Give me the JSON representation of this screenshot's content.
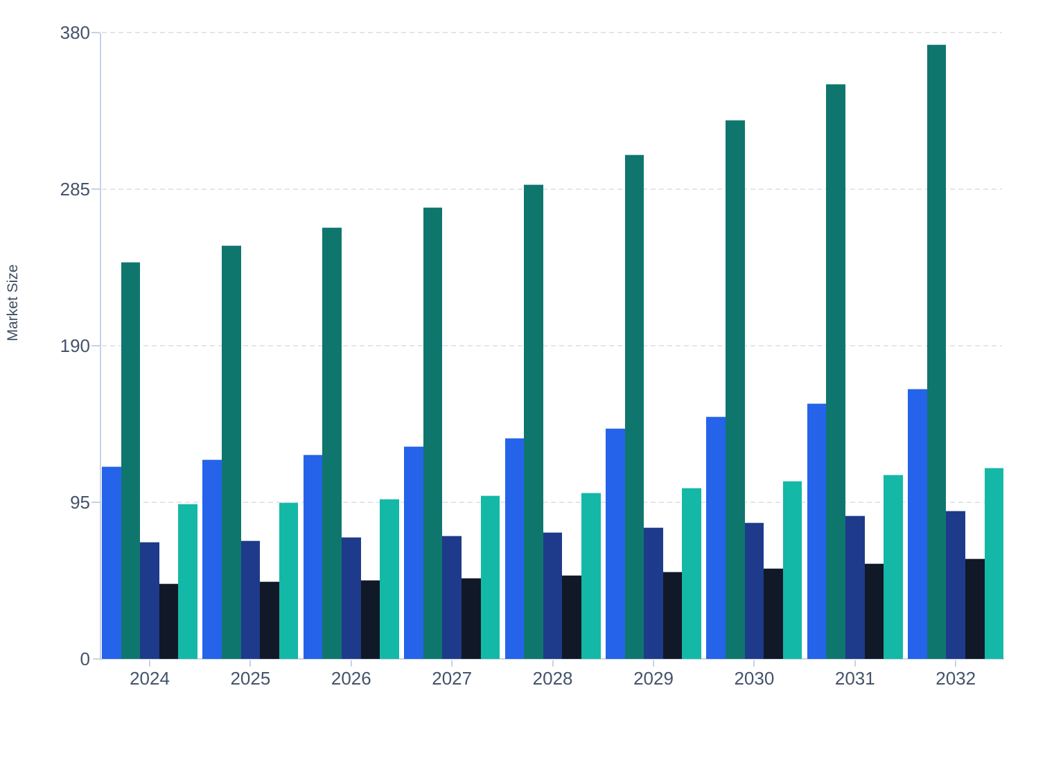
{
  "chart_data": {
    "type": "bar",
    "title": "",
    "xlabel": "",
    "ylabel": "Market Size",
    "categories": [
      "2024",
      "2025",
      "2026",
      "2027",
      "2028",
      "2029",
      "2030",
      "2031",
      "2032"
    ],
    "series": [
      {
        "name": "blue",
        "color": "#2563eb",
        "values": [
          117,
          121,
          124,
          129,
          134,
          140,
          147,
          155,
          164
        ]
      },
      {
        "name": "dark-teal",
        "color": "#0f766e",
        "values": [
          241,
          251,
          262,
          274,
          288,
          306,
          327,
          349,
          373
        ]
      },
      {
        "name": "navy",
        "color": "#1e3a8a",
        "values": [
          71,
          72,
          74,
          75,
          77,
          80,
          83,
          87,
          90
        ]
      },
      {
        "name": "dark-navy",
        "color": "#111827",
        "values": [
          46,
          47,
          48,
          49,
          51,
          53,
          55,
          58,
          61
        ]
      },
      {
        "name": "turquoise",
        "color": "#14b8a6",
        "values": [
          94,
          95,
          97,
          99,
          101,
          104,
          108,
          112,
          116
        ]
      }
    ],
    "ylim": [
      0,
      380
    ],
    "yticks": [
      0,
      95,
      190,
      285,
      380
    ],
    "ytick_labels": [
      "0",
      "95",
      "190",
      "285",
      "380"
    ],
    "xtick_labels": [
      "2024",
      "2025",
      "2026",
      "2027",
      "2028",
      "2029",
      "2030",
      "2031",
      "2032"
    ],
    "grid": "horizontal-dashed",
    "legend_position": "none",
    "bar_gap_within_group": 0,
    "axis_color": "#c4d2e8",
    "gridline_color": "#e2e5ea",
    "label_color": "#44536a"
  }
}
